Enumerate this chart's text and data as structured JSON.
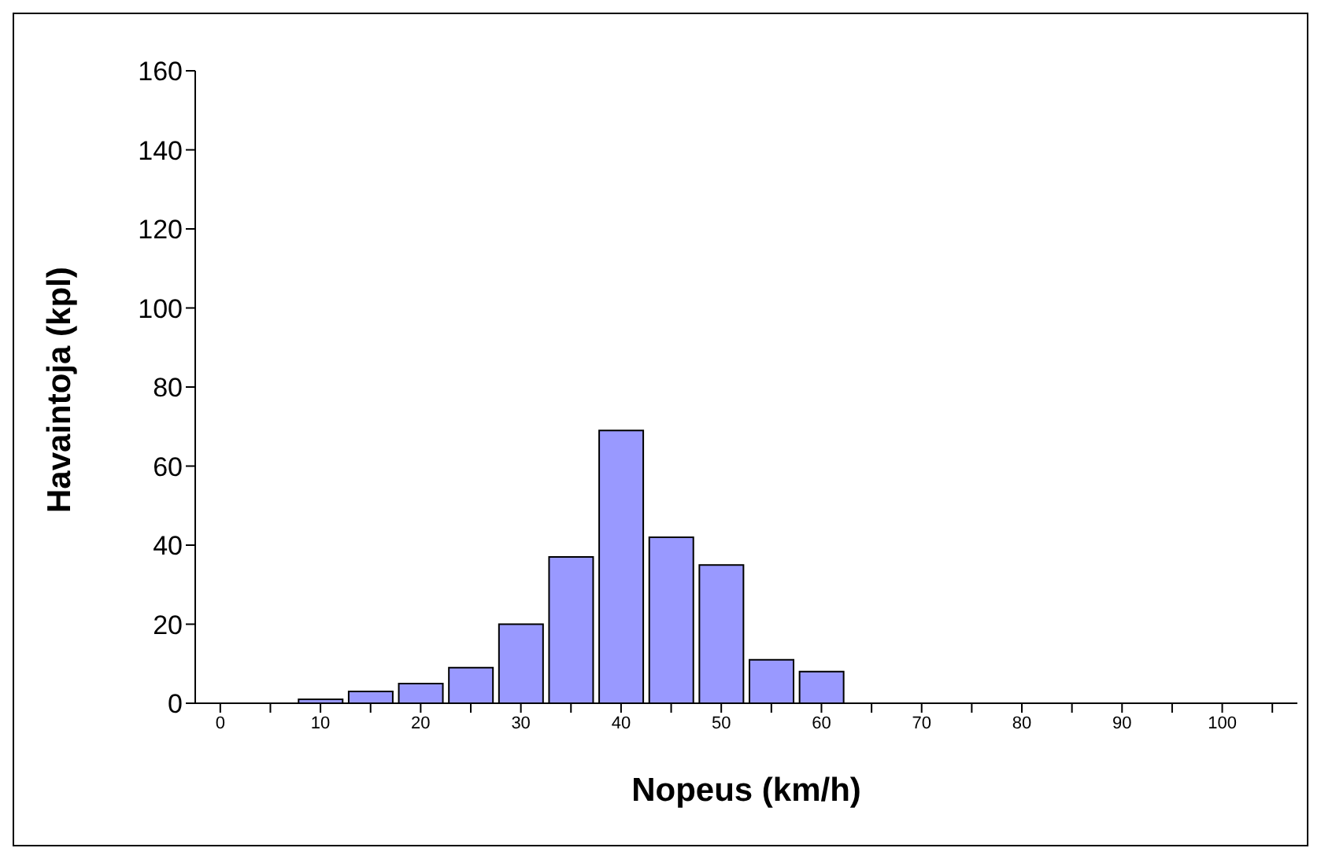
{
  "chart_data": {
    "type": "bar",
    "xlabel": "Nopeus (km/h)",
    "ylabel": "Havaintoja (kpl)",
    "categories": [
      "0",
      null,
      "10",
      null,
      "20",
      null,
      "30",
      null,
      "40",
      null,
      "50",
      null,
      "60",
      null,
      "70",
      null,
      "80",
      null,
      "90",
      null,
      "100",
      null
    ],
    "values": [
      null,
      null,
      1,
      3,
      5,
      9,
      20,
      37,
      69,
      42,
      35,
      11,
      8,
      null,
      null,
      null,
      null,
      null,
      null,
      null,
      null,
      null
    ],
    "color": "#9999ff",
    "ylim": [
      0,
      160
    ],
    "yticks": [
      0,
      20,
      40,
      60,
      80,
      100,
      120,
      140,
      160
    ],
    "grid": false,
    "legend": false
  }
}
